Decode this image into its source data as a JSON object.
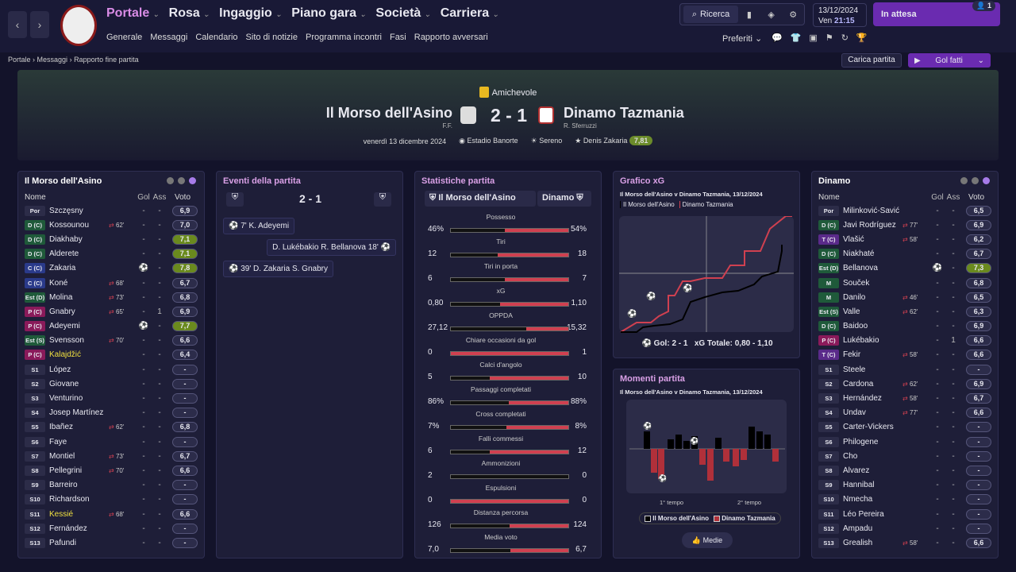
{
  "nav": {
    "back": "‹",
    "forward": "›",
    "menu": [
      "Portale",
      "Rosa",
      "Ingaggio",
      "Piano gara",
      "Società",
      "Carriera"
    ],
    "sub": [
      "Generale",
      "Messaggi",
      "Calendario",
      "Sito di notizie",
      "Programma incontri",
      "Fasi",
      "Rapporto avversari"
    ],
    "search": "Ricerca",
    "date": "13/12/2024",
    "day": "Ven",
    "time": "21:15",
    "waiting": "In attesa",
    "wait_badge": "1",
    "prefs": "Preferiti",
    "notif_badge": "1"
  },
  "breadcrumb": [
    "Portale",
    "Messaggi",
    "Rapporto fine partita"
  ],
  "actions": {
    "load": "Carica partita",
    "goals": "Gol fatti"
  },
  "match": {
    "competition": "Amichevole",
    "home": "Il Morso dell'Asino",
    "home_coach": "F.F.",
    "away": "Dinamo Tazmania",
    "away_coach": "R. Sferruzzi",
    "score": "2 - 1",
    "date": "venerdì 13 dicembre 2024",
    "stadium": "Estadio Banorte",
    "weather": "Sereno",
    "potm": "Denis Zakaria",
    "potm_rating": "7,81"
  },
  "home_panel": {
    "title": "Il Morso dell'Asino",
    "head": [
      "Nome",
      "Gol",
      "Ass",
      "Voto"
    ],
    "players": [
      {
        "pos": "Por",
        "c": "#2c2c48",
        "name": "Szczęsny",
        "sub": "",
        "g": "-",
        "a": "-",
        "v": "6,9"
      },
      {
        "pos": "D (C)",
        "c": "#1f5a3a",
        "name": "Kossounou",
        "sub": "62'",
        "g": "-",
        "a": "-",
        "v": "7,0"
      },
      {
        "pos": "D (C)",
        "c": "#1f5a3a",
        "name": "Diakhaby",
        "sub": "",
        "g": "-",
        "a": "-",
        "v": "7,1",
        "hi": 1
      },
      {
        "pos": "D (C)",
        "c": "#1f5a3a",
        "name": "Alderete",
        "sub": "",
        "g": "-",
        "a": "-",
        "v": "7,1",
        "hi": 1
      },
      {
        "pos": "C (C)",
        "c": "#2a3a8a",
        "name": "Zakaria",
        "sub": "",
        "g": "⚽",
        "a": "-",
        "v": "7,8",
        "hi": 1
      },
      {
        "pos": "C (C)",
        "c": "#2a3a8a",
        "name": "Koné",
        "sub": "68'",
        "g": "-",
        "a": "-",
        "v": "6,7"
      },
      {
        "pos": "Est (D)",
        "c": "#1f5a3a",
        "name": "Molina",
        "sub": "73'",
        "g": "-",
        "a": "-",
        "v": "6,8"
      },
      {
        "pos": "P (C)",
        "c": "#8a1a5a",
        "name": "Gnabry",
        "sub": "65'",
        "g": "-",
        "a": "1",
        "v": "6,9"
      },
      {
        "pos": "P (C)",
        "c": "#8a1a5a",
        "name": "Adeyemi",
        "sub": "",
        "g": "⚽",
        "a": "-",
        "v": "7,7",
        "hi": 1
      },
      {
        "pos": "Est (S)",
        "c": "#1f5a3a",
        "name": "Svensson",
        "sub": "70'",
        "g": "-",
        "a": "-",
        "v": "6,6"
      },
      {
        "pos": "P (C)",
        "c": "#8a1a5a",
        "name": "Kalajdžić",
        "sub": "",
        "g": "-",
        "a": "-",
        "v": "6,4",
        "y": 1
      },
      {
        "pos": "S1",
        "c": "#2c2c48",
        "name": "López",
        "sub": "",
        "g": "-",
        "a": "-",
        "v": "-"
      },
      {
        "pos": "S2",
        "c": "#2c2c48",
        "name": "Giovane",
        "sub": "",
        "g": "-",
        "a": "-",
        "v": "-"
      },
      {
        "pos": "S3",
        "c": "#2c2c48",
        "name": "Venturino",
        "sub": "",
        "g": "-",
        "a": "-",
        "v": "-"
      },
      {
        "pos": "S4",
        "c": "#2c2c48",
        "name": "Josep Martínez",
        "sub": "",
        "g": "-",
        "a": "-",
        "v": "-"
      },
      {
        "pos": "S5",
        "c": "#2c2c48",
        "name": "Ibañez",
        "sub": "62'",
        "g": "-",
        "a": "-",
        "v": "6,8"
      },
      {
        "pos": "S6",
        "c": "#2c2c48",
        "name": "Faye",
        "sub": "",
        "g": "-",
        "a": "-",
        "v": "-"
      },
      {
        "pos": "S7",
        "c": "#2c2c48",
        "name": "Montiel",
        "sub": "73'",
        "g": "-",
        "a": "-",
        "v": "6,7"
      },
      {
        "pos": "S8",
        "c": "#2c2c48",
        "name": "Pellegrini",
        "sub": "70'",
        "g": "-",
        "a": "-",
        "v": "6,6"
      },
      {
        "pos": "S9",
        "c": "#2c2c48",
        "name": "Barreiro",
        "sub": "",
        "g": "-",
        "a": "-",
        "v": "-"
      },
      {
        "pos": "S10",
        "c": "#2c2c48",
        "name": "Richardson",
        "sub": "",
        "g": "-",
        "a": "-",
        "v": "-"
      },
      {
        "pos": "S11",
        "c": "#2c2c48",
        "name": "Kessié",
        "sub": "68'",
        "g": "-",
        "a": "-",
        "v": "6,6",
        "y": 1
      },
      {
        "pos": "S12",
        "c": "#2c2c48",
        "name": "Fernández",
        "sub": "",
        "g": "-",
        "a": "-",
        "v": "-"
      },
      {
        "pos": "S13",
        "c": "#2c2c48",
        "name": "Pafundi",
        "sub": "",
        "g": "-",
        "a": "-",
        "v": "-"
      }
    ]
  },
  "events": {
    "title": "Eventi della partita",
    "score": "2 - 1",
    "items": [
      {
        "side": "home",
        "text": "7' K. Adeyemi"
      },
      {
        "side": "away",
        "text": "D. Lukébakio R. Bellanova 18'"
      },
      {
        "side": "home",
        "text": "39' D. Zakaria S. Gnabry"
      }
    ]
  },
  "stats": {
    "title": "Statistiche partita",
    "home": "Il Morso dell'Asino",
    "away": "Dinamo",
    "rows": [
      {
        "l": "Possesso",
        "h": "46%",
        "a": "54%",
        "hp": 46
      },
      {
        "l": "Tiri",
        "h": "12",
        "a": "18",
        "hp": 40
      },
      {
        "l": "Tiri in porta",
        "h": "6",
        "a": "7",
        "hp": 46
      },
      {
        "l": "xG",
        "h": "0,80",
        "a": "1,10",
        "hp": 42
      },
      {
        "l": "OPPDA",
        "h": "27,12",
        "a": "15,32",
        "hp": 64
      },
      {
        "l": "Chiare occasioni da gol",
        "h": "0",
        "a": "1",
        "hp": 0
      },
      {
        "l": "Calci d'angolo",
        "h": "5",
        "a": "10",
        "hp": 33
      },
      {
        "l": "Passaggi completati",
        "h": "86%",
        "a": "88%",
        "hp": 49
      },
      {
        "l": "Cross completati",
        "h": "7%",
        "a": "8%",
        "hp": 47
      },
      {
        "l": "Falli commessi",
        "h": "6",
        "a": "12",
        "hp": 33
      },
      {
        "l": "Ammonizioni",
        "h": "2",
        "a": "0",
        "hp": 100
      },
      {
        "l": "Espulsioni",
        "h": "0",
        "a": "0",
        "hp": 0
      },
      {
        "l": "Distanza percorsa",
        "h": "126",
        "a": "124",
        "hp": 50
      },
      {
        "l": "Media voto",
        "h": "7,0",
        "a": "6,7",
        "hp": 51
      }
    ]
  },
  "xg": {
    "title": "Grafico xG",
    "subtitle": "Il Morso dell'Asino v Dinamo Tazmania, 13/12/2024",
    "legend": [
      "Il Morso dell'Asino",
      "Dinamo Tazmania"
    ],
    "goals_label": "Gol: 2 - 1",
    "xg_label": "xG Totale: 0,80 - 1,10"
  },
  "moments": {
    "title": "Momenti partita",
    "subtitle": "Il Morso dell'Asino v Dinamo Tazmania, 13/12/2024",
    "t1": "1° tempo",
    "t2": "2° tempo",
    "legend": [
      "Il Morso dell'Asino",
      "Dinamo Tazmania"
    ],
    "button": "Medie"
  },
  "away_panel": {
    "title": "Dinamo",
    "head": [
      "Nome",
      "Gol",
      "Ass",
      "Voto"
    ],
    "players": [
      {
        "pos": "Por",
        "c": "#2c2c48",
        "name": "Milinković-Savić",
        "sub": "",
        "g": "-",
        "a": "-",
        "v": "6,5"
      },
      {
        "pos": "D (C)",
        "c": "#1f5a3a",
        "name": "Javi Rodríguez",
        "sub": "77'",
        "g": "-",
        "a": "-",
        "v": "6,9"
      },
      {
        "pos": "T (C)",
        "c": "#5a2a8a",
        "name": "Vlašić",
        "sub": "58'",
        "g": "-",
        "a": "-",
        "v": "6,2"
      },
      {
        "pos": "D (C)",
        "c": "#1f5a3a",
        "name": "Niakhaté",
        "sub": "",
        "g": "-",
        "a": "-",
        "v": "6,7"
      },
      {
        "pos": "Est (D)",
        "c": "#1f5a3a",
        "name": "Bellanova",
        "sub": "",
        "g": "⚽",
        "a": "-",
        "v": "7,3",
        "hi": 1
      },
      {
        "pos": "M",
        "c": "#1f5a3a",
        "name": "Souček",
        "sub": "",
        "g": "-",
        "a": "-",
        "v": "6,8"
      },
      {
        "pos": "M",
        "c": "#1f5a3a",
        "name": "Danilo",
        "sub": "46'",
        "g": "-",
        "a": "-",
        "v": "6,5"
      },
      {
        "pos": "Est (S)",
        "c": "#1f5a3a",
        "name": "Valle",
        "sub": "62'",
        "g": "-",
        "a": "-",
        "v": "6,3"
      },
      {
        "pos": "D (C)",
        "c": "#1f5a3a",
        "name": "Baidoo",
        "sub": "",
        "g": "-",
        "a": "-",
        "v": "6,9"
      },
      {
        "pos": "P (C)",
        "c": "#8a1a5a",
        "name": "Lukébakio",
        "sub": "",
        "g": "-",
        "a": "1",
        "v": "6,6"
      },
      {
        "pos": "T (C)",
        "c": "#5a2a8a",
        "name": "Fekir",
        "sub": "58'",
        "g": "-",
        "a": "-",
        "v": "6,6"
      },
      {
        "pos": "S1",
        "c": "#2c2c48",
        "name": "Steele",
        "sub": "",
        "g": "-",
        "a": "-",
        "v": "-"
      },
      {
        "pos": "S2",
        "c": "#2c2c48",
        "name": "Cardona",
        "sub": "62'",
        "g": "-",
        "a": "-",
        "v": "6,9"
      },
      {
        "pos": "S3",
        "c": "#2c2c48",
        "name": "Hernández",
        "sub": "58'",
        "g": "-",
        "a": "-",
        "v": "6,7"
      },
      {
        "pos": "S4",
        "c": "#2c2c48",
        "name": "Undav",
        "sub": "77'",
        "g": "-",
        "a": "-",
        "v": "6,6"
      },
      {
        "pos": "S5",
        "c": "#2c2c48",
        "name": "Carter-Vickers",
        "sub": "",
        "g": "-",
        "a": "-",
        "v": "-"
      },
      {
        "pos": "S6",
        "c": "#2c2c48",
        "name": "Philogene",
        "sub": "",
        "g": "-",
        "a": "-",
        "v": "-"
      },
      {
        "pos": "S7",
        "c": "#2c2c48",
        "name": "Cho",
        "sub": "",
        "g": "-",
        "a": "-",
        "v": "-"
      },
      {
        "pos": "S8",
        "c": "#2c2c48",
        "name": "Álvarez",
        "sub": "",
        "g": "-",
        "a": "-",
        "v": "-"
      },
      {
        "pos": "S9",
        "c": "#2c2c48",
        "name": "Hannibal",
        "sub": "",
        "g": "-",
        "a": "-",
        "v": "-"
      },
      {
        "pos": "S10",
        "c": "#2c2c48",
        "name": "Nmecha",
        "sub": "",
        "g": "-",
        "a": "-",
        "v": "-"
      },
      {
        "pos": "S11",
        "c": "#2c2c48",
        "name": "Léo Pereira",
        "sub": "",
        "g": "-",
        "a": "-",
        "v": "-"
      },
      {
        "pos": "S12",
        "c": "#2c2c48",
        "name": "Ampadu",
        "sub": "",
        "g": "-",
        "a": "-",
        "v": "-"
      },
      {
        "pos": "S13",
        "c": "#2c2c48",
        "name": "Grealish",
        "sub": "58'",
        "g": "-",
        "a": "-",
        "v": "6,6"
      }
    ]
  }
}
